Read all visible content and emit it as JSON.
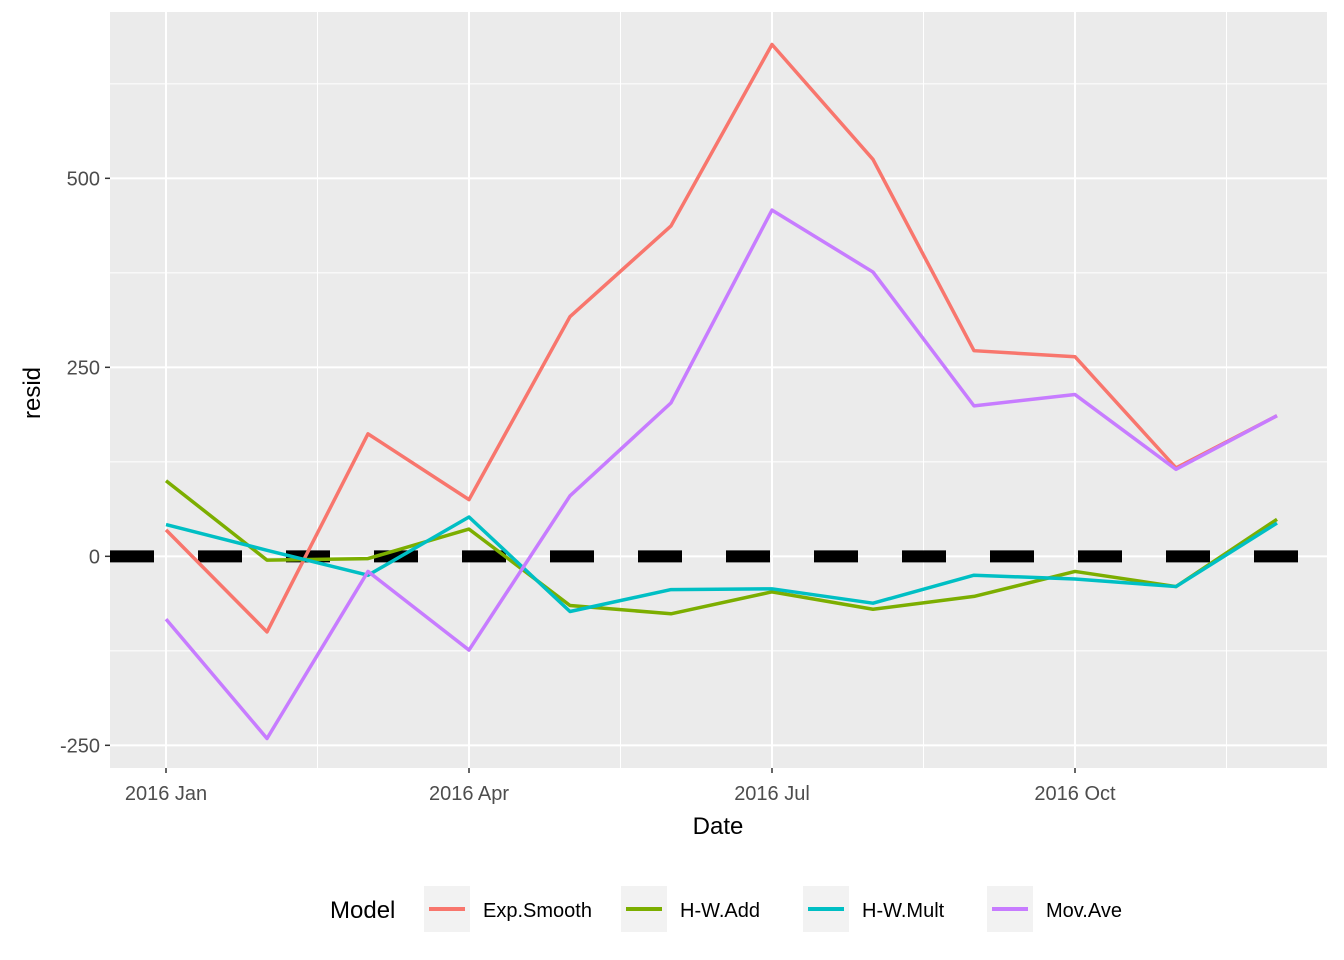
{
  "chart_data": {
    "type": "line",
    "xlabel": "Date",
    "ylabel": "resid",
    "x": [
      "2016-01",
      "2016-02",
      "2016-03",
      "2016-04",
      "2016-05",
      "2016-06",
      "2016-07",
      "2016-08",
      "2016-09",
      "2016-10",
      "2016-11",
      "2016-12"
    ],
    "x_ticks": [
      {
        "value": "2016-01",
        "label": "2016 Jan"
      },
      {
        "value": "2016-04",
        "label": "2016 Apr"
      },
      {
        "value": "2016-07",
        "label": "2016 Jul"
      },
      {
        "value": "2016-10",
        "label": "2016 Oct"
      }
    ],
    "y_ticks": [
      -250,
      0,
      250,
      500
    ],
    "ylim": [
      -280,
      720
    ],
    "grid": true,
    "legend": {
      "title": "Model",
      "position": "bottom"
    },
    "reference_line": {
      "y": 0,
      "style": "dashed",
      "color": "#000000"
    },
    "series": [
      {
        "name": "Exp.Smooth",
        "color": "#F8766D",
        "values": [
          35,
          -100,
          162,
          75,
          317,
          437,
          677,
          525,
          272,
          264,
          117,
          186
        ]
      },
      {
        "name": "H-W.Add",
        "color": "#7CAE00",
        "values": [
          100,
          -5,
          -3,
          36,
          -65,
          -76,
          -47,
          -70,
          -53,
          -20,
          -40,
          49
        ]
      },
      {
        "name": "H-W.Mult",
        "color": "#00BFC4",
        "values": [
          42,
          8,
          -25,
          52,
          -73,
          -44,
          -43,
          -62,
          -25,
          -30,
          -40,
          44
        ]
      },
      {
        "name": "Mov.Ave",
        "color": "#C77CFF",
        "values": [
          -83,
          -241,
          -20,
          -124,
          80,
          203,
          458,
          376,
          199,
          214,
          115,
          186
        ]
      }
    ]
  }
}
